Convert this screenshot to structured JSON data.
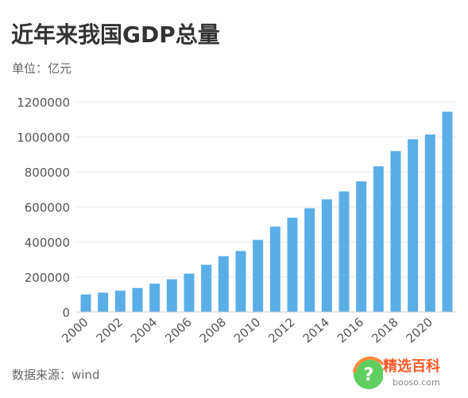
{
  "header": {
    "title": "近年来我国GDP总量",
    "unit": "单位：亿元"
  },
  "footer": {
    "source": "数据来源：wind"
  },
  "watermark": {
    "brand": "精选百科",
    "url": "booso.com",
    "icon": "question-mark-icon"
  },
  "colors": {
    "bar": "#5aaee8",
    "grid": "#e9e9e9",
    "axis_text": "#555555",
    "watermark_accent": "#ff5a2a"
  },
  "chart_data": {
    "type": "bar",
    "title": "近年来我国GDP总量",
    "subtitle": "单位：亿元",
    "xlabel": "",
    "ylabel": "",
    "ylim": [
      0,
      1200000
    ],
    "yticks": [
      0,
      200000,
      400000,
      600000,
      800000,
      1000000,
      1200000
    ],
    "grid": true,
    "legend": "none",
    "categories": [
      "2000",
      "2001",
      "2002",
      "2003",
      "2004",
      "2005",
      "2006",
      "2007",
      "2008",
      "2009",
      "2010",
      "2011",
      "2012",
      "2013",
      "2014",
      "2015",
      "2016",
      "2017",
      "2018",
      "2019",
      "2020",
      "2021"
    ],
    "xtick_labels": [
      "2000",
      "2002",
      "2004",
      "2006",
      "2008",
      "2010",
      "2012",
      "2014",
      "2016",
      "2018",
      "2020"
    ],
    "values": [
      100280,
      110863,
      121717,
      137422,
      161840,
      187319,
      219439,
      270092,
      319245,
      348518,
      412119,
      487940,
      538580,
      592963,
      643563,
      688858,
      746395,
      832036,
      919281,
      986515,
      1013567,
      1143670
    ]
  }
}
